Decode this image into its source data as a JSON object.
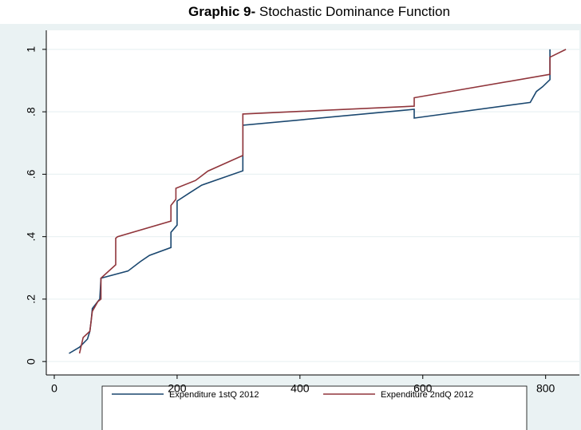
{
  "chart_data": {
    "type": "line",
    "title_label": "Graphic 9-",
    "title": "Stochastic Dominance Function",
    "xlim": [
      -13,
      855
    ],
    "ylim": [
      -0.043,
      1.061
    ],
    "xticks": [
      0,
      200,
      400,
      600,
      800
    ],
    "yticks": [
      0,
      {
        "value": 0.2,
        "label": ".2"
      },
      {
        "value": 0.4,
        "label": ".4"
      },
      {
        "value": 0.6,
        "label": ".6"
      },
      {
        "value": 0.8,
        "label": ".8"
      },
      1
    ],
    "grid": true,
    "legend": "bottom",
    "series": [
      {
        "name": "Expenditure 1stQ 2012",
        "color": "#1a476f",
        "x": [
          24,
          41,
          54,
          58,
          60,
          62,
          70,
          74,
          76,
          120,
          140,
          155,
          190,
          190,
          200,
          200,
          220,
          240,
          307,
          307,
          586,
          586,
          775,
          785,
          795,
          807,
          807
        ],
        "values": [
          0.026,
          0.046,
          0.072,
          0.097,
          0.13,
          0.17,
          0.19,
          0.2,
          0.267,
          0.29,
          0.32,
          0.34,
          0.365,
          0.414,
          0.437,
          0.514,
          0.54,
          0.565,
          0.611,
          0.757,
          0.808,
          0.78,
          0.83,
          0.865,
          0.88,
          0.903,
          1.0
        ]
      },
      {
        "name": "Expenditure 2ndQ 2012",
        "color": "#90353b",
        "x": [
          41,
          47,
          58,
          62,
          71,
          76,
          76,
          100,
          100,
          103,
          190,
          190,
          198,
          198,
          230,
          250,
          307,
          307,
          586,
          586,
          807,
          807,
          833
        ],
        "values": [
          0.026,
          0.077,
          0.097,
          0.161,
          0.192,
          0.2,
          0.267,
          0.31,
          0.395,
          0.4,
          0.45,
          0.5,
          0.52,
          0.555,
          0.58,
          0.61,
          0.66,
          0.793,
          0.818,
          0.845,
          0.92,
          0.975,
          1.0
        ]
      }
    ]
  }
}
